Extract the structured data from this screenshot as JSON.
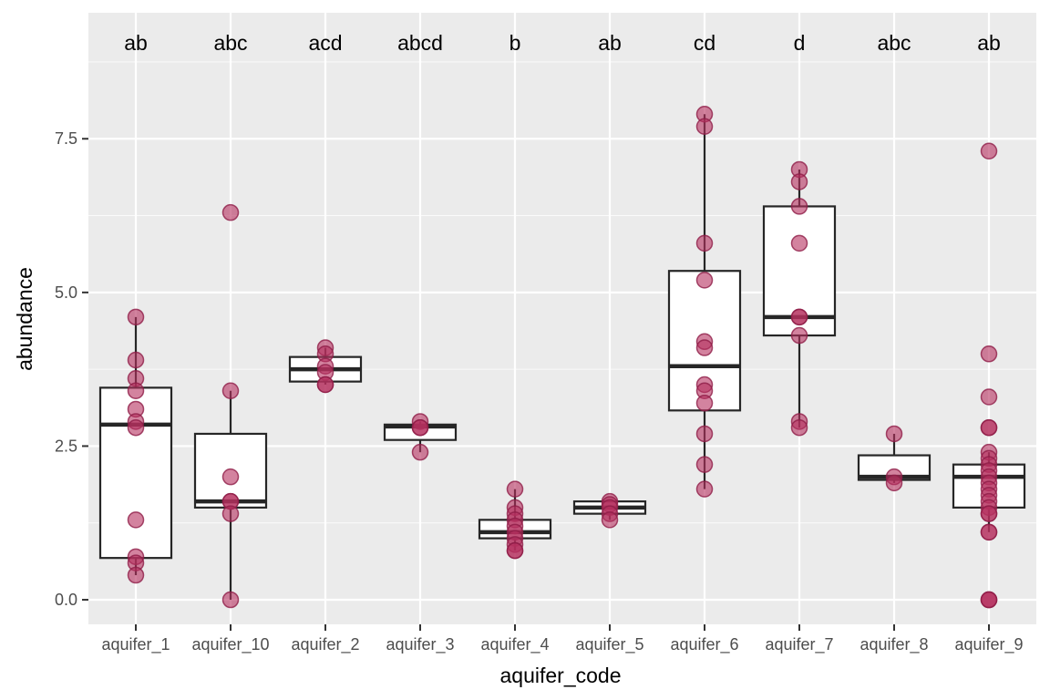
{
  "chart_data": {
    "type": "boxplot",
    "xlabel": "aquifer_code",
    "ylabel": "abundance",
    "ylim": [
      -0.4,
      9.55
    ],
    "y_ticks": [
      0.0,
      2.5,
      5.0,
      7.5
    ],
    "y_tick_labels": [
      "0.0",
      "2.5",
      "5.0",
      "7.5"
    ],
    "grid": true,
    "legend": "none",
    "colors": {
      "panel_bg": "#ebebeb",
      "grid_major": "#ffffff",
      "point_fill": "#b5305f",
      "point_outline": "#8f1d47",
      "box_fill": "#ffffff",
      "box_line": "#262626"
    },
    "categories": [
      "aquifer_1",
      "aquifer_10",
      "aquifer_2",
      "aquifer_3",
      "aquifer_4",
      "aquifer_5",
      "aquifer_6",
      "aquifer_7",
      "aquifer_8",
      "aquifer_9"
    ],
    "group_letters": [
      "ab",
      "abc",
      "acd",
      "abcd",
      "b",
      "ab",
      "cd",
      "d",
      "abc",
      "ab"
    ],
    "boxes": [
      {
        "q1": 0.68,
        "median": 2.85,
        "q3": 3.45,
        "whisker_low": 0.4,
        "whisker_high": 4.6
      },
      {
        "q1": 1.5,
        "median": 1.6,
        "q3": 2.7,
        "whisker_low": 0.0,
        "whisker_high": 3.4
      },
      {
        "q1": 3.55,
        "median": 3.75,
        "q3": 3.95,
        "whisker_low": 3.5,
        "whisker_high": 4.1
      },
      {
        "q1": 2.6,
        "median": 2.82,
        "q3": 2.85,
        "whisker_low": 2.4,
        "whisker_high": 2.9
      },
      {
        "q1": 1.0,
        "median": 1.1,
        "q3": 1.3,
        "whisker_low": 0.8,
        "whisker_high": 1.8
      },
      {
        "q1": 1.4,
        "median": 1.5,
        "q3": 1.6,
        "whisker_low": 1.3,
        "whisker_high": 1.6
      },
      {
        "q1": 3.08,
        "median": 3.8,
        "q3": 5.35,
        "whisker_low": 1.8,
        "whisker_high": 7.9
      },
      {
        "q1": 4.3,
        "median": 4.6,
        "q3": 6.4,
        "whisker_low": 2.8,
        "whisker_high": 7.0
      },
      {
        "q1": 1.95,
        "median": 2.0,
        "q3": 2.35,
        "whisker_low": 1.9,
        "whisker_high": 2.7
      },
      {
        "q1": 1.5,
        "median": 2.0,
        "q3": 2.2,
        "whisker_low": 1.1,
        "whisker_high": 2.4
      }
    ],
    "points": [
      [
        4.6,
        3.9,
        3.6,
        3.4,
        3.1,
        2.9,
        2.8,
        1.3,
        0.7,
        0.6,
        0.4
      ],
      [
        6.3,
        3.4,
        2.0,
        1.6,
        1.6,
        1.4,
        0.0
      ],
      [
        4.1,
        4.0,
        3.8,
        3.7,
        3.5,
        3.5
      ],
      [
        2.9,
        2.8,
        2.8,
        2.4
      ],
      [
        1.8,
        1.5,
        1.4,
        1.3,
        1.2,
        1.1,
        1.0,
        0.9,
        0.8,
        0.8
      ],
      [
        1.6,
        1.55,
        1.5,
        1.4,
        1.3
      ],
      [
        7.9,
        7.7,
        5.8,
        5.2,
        4.2,
        4.1,
        3.5,
        3.4,
        3.2,
        2.7,
        2.2,
        1.8
      ],
      [
        7.0,
        6.8,
        6.4,
        5.8,
        4.6,
        4.6,
        4.3,
        2.9,
        2.8
      ],
      [
        2.7,
        2.0,
        1.9
      ],
      [
        7.3,
        4.0,
        3.3,
        2.8,
        2.8,
        2.4,
        2.3,
        2.2,
        2.1,
        2.0,
        1.9,
        1.8,
        1.7,
        1.6,
        1.5,
        1.4,
        1.4,
        1.1,
        1.1,
        0.0,
        0.0,
        0.0
      ]
    ]
  }
}
